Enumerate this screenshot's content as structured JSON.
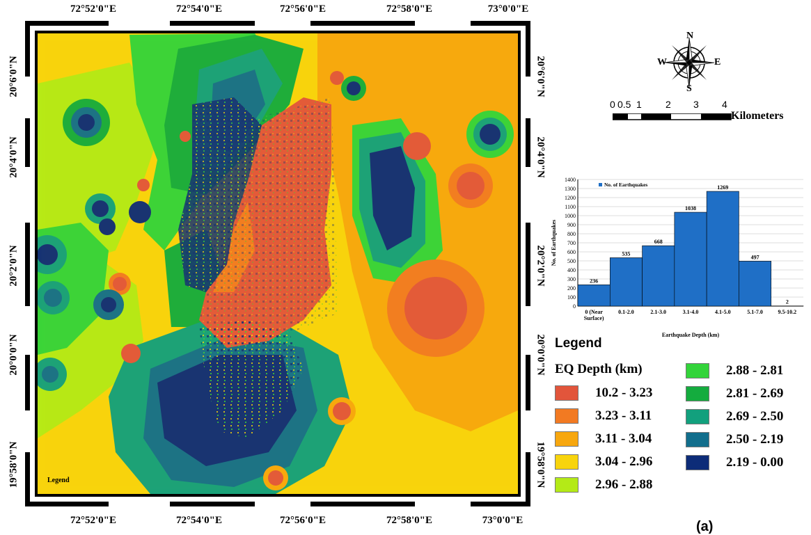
{
  "map": {
    "top_longitudes": [
      "72°52'0\"E",
      "72°54'0\"E",
      "72°56'0\"E",
      "72°58'0\"E",
      "73°0'0\"E"
    ],
    "bottom_longitudes": [
      "72°52'0\"E",
      "72°54'0\"E",
      "72°56'0\"E",
      "72°58'0\"E",
      "73°0'0\"E"
    ],
    "left_latitudes": [
      "20°6'0\"N",
      "20°4'0\"N",
      "20°2'0\"N",
      "20°0'0\"N",
      "19°58'0\"N"
    ],
    "right_latitudes": [
      "20°6'0\"N",
      "20°4'0\"N",
      "20°2'0\"N",
      "20°0'0\"N",
      "19°58'0\"N"
    ],
    "inner_legend_text": "Legend"
  },
  "north_arrow": {
    "n": "N",
    "s": "S",
    "e": "E",
    "w": "W"
  },
  "scale_bar": {
    "ticks": [
      "0",
      "0.5",
      "1",
      "2",
      "3",
      "4"
    ],
    "unit": "Kilometers"
  },
  "legend": {
    "title": "Legend",
    "subtitle": "EQ Depth (km)",
    "items": [
      {
        "label": "10.2 -  3.23",
        "color": "#e2553b"
      },
      {
        "label": "3.23 -  3.11",
        "color": "#f27a22"
      },
      {
        "label": "3.11 -  3.04",
        "color": "#f7a70e"
      },
      {
        "label": "3.04 -  2.96",
        "color": "#f8d40d"
      },
      {
        "label": "2.96 -  2.88",
        "color": "#b4ea17"
      },
      {
        "label": "2.88 -  2.81",
        "color": "#33d43a"
      },
      {
        "label": "2.81 -  2.69",
        "color": "#14ac3e"
      },
      {
        "label": "2.69 -  2.50",
        "color": "#12a07d"
      },
      {
        "label": "2.50 -  2.19",
        "color": "#126e8c"
      },
      {
        "label": "2.19 - 0.00",
        "color": "#0d2c78"
      }
    ]
  },
  "chart_data": {
    "type": "bar",
    "title": "",
    "legend": "No. of Earthquakes",
    "legend_position": "top-left",
    "xlabel": "Earthquake Depth (km)",
    "ylabel": "No. of Earthquakes",
    "categories": [
      "0 (Near Surface)",
      "0.1-2.0",
      "2.1-3.0",
      "3.1-4.0",
      "4.1-5.0",
      "5.1-7.0",
      "9.5-10.2"
    ],
    "category_lines": [
      [
        "0 (Near",
        "Surface)"
      ],
      [
        "0.1-2.0"
      ],
      [
        "2.1-3.0"
      ],
      [
        "3.1-4.0"
      ],
      [
        "4.1-5.0"
      ],
      [
        "5.1-7.0"
      ],
      [
        "9.5-10.2"
      ]
    ],
    "series": [
      {
        "name": "No. of Earthquakes",
        "values": [
          236,
          535,
          668,
          1038,
          1269,
          497,
          2
        ],
        "color": "#1f6fc6"
      }
    ],
    "ylim": [
      0,
      1400
    ],
    "yticks": [
      0,
      100,
      200,
      300,
      400,
      500,
      600,
      700,
      800,
      900,
      1000,
      1100,
      1200,
      1300,
      1400
    ],
    "grid": true
  },
  "panel_label": "(a)"
}
